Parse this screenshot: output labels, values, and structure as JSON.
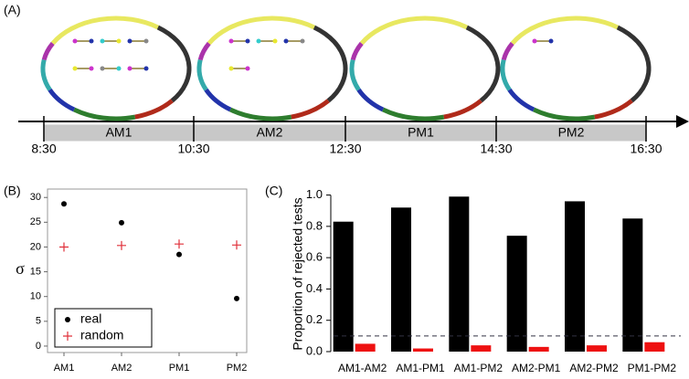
{
  "panel_a": {
    "label": "(A)",
    "sessions": [
      "AM1",
      "AM2",
      "PM1",
      "PM2"
    ],
    "times": [
      "8:30",
      "10:30",
      "12:30",
      "14:30",
      "16:30"
    ]
  },
  "chart_data": [
    {
      "type": "scatter",
      "label": "(B)",
      "y_label": "σ",
      "categories": [
        "AM1",
        "AM2",
        "PM1",
        "PM2"
      ],
      "series": [
        {
          "name": "real",
          "color": "#000000",
          "marker": "dot",
          "values": [
            28.7,
            24.9,
            18.5,
            9.6
          ]
        },
        {
          "name": "random",
          "color": "#e0303a",
          "marker": "plus",
          "values": [
            20.0,
            20.3,
            20.6,
            20.4
          ]
        }
      ],
      "ylim": [
        -1.3,
        31.7
      ],
      "yticks": [
        0,
        5,
        10,
        15,
        20,
        25,
        30
      ],
      "legend": "bottom-left"
    },
    {
      "type": "bar",
      "label": "(C)",
      "y_label": "Proportion of rejected tests",
      "categories": [
        "AM1-AM2",
        "AM1-PM1",
        "AM1-PM2",
        "AM2-PM1",
        "AM2-PM2",
        "PM1-PM2"
      ],
      "series": [
        {
          "color": "#000000",
          "values": [
            0.83,
            0.92,
            0.99,
            0.74,
            0.96,
            0.85
          ]
        },
        {
          "color": "#ee1111",
          "values": [
            0.05,
            0.02,
            0.04,
            0.03,
            0.04,
            0.06
          ]
        }
      ],
      "ylim": [
        0,
        1.05
      ],
      "yticks": [
        {
          "value": 0,
          "label": "0.0"
        },
        0.2,
        0.4,
        0.6,
        0.8,
        {
          "value": 1,
          "label": "1.0"
        }
      ],
      "hline": 0.1
    }
  ]
}
